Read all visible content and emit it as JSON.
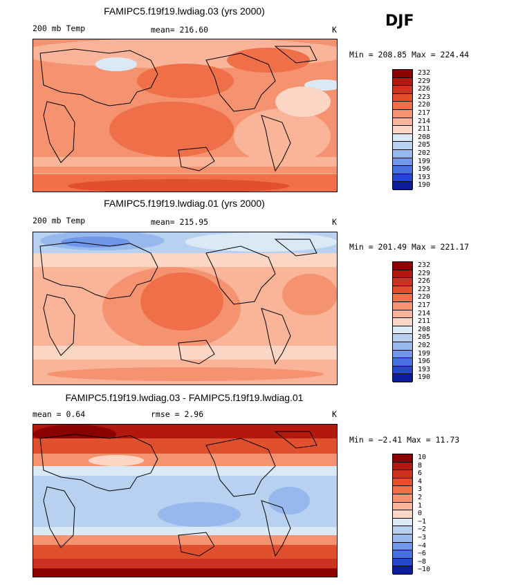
{
  "season": "DJF",
  "chart_data": [
    {
      "type": "heatmap",
      "title": "FAMIPC5.f19f19.lwdiag.03 (yrs 2000)",
      "variable": "200 mb Temp",
      "stat_text": "mean= 216.60",
      "units": "K",
      "min_max_text": "Min = 208.85 Max = 224.44",
      "min": 208.85,
      "max": 224.44,
      "levels": [
        "232",
        "229",
        "226",
        "223",
        "220",
        "217",
        "214",
        "211",
        "208",
        "205",
        "202",
        "199",
        "196",
        "193",
        "190"
      ],
      "colors": [
        "#8b0000",
        "#b2180e",
        "#cd3220",
        "#e0502f",
        "#ef7048",
        "#f59370",
        "#fab49a",
        "#fcd6c4",
        "#dbe8f5",
        "#b8d1f0",
        "#96b8ec",
        "#6f96e8",
        "#4770e0",
        "#2447cc",
        "#0a1c99"
      ]
    },
    {
      "type": "heatmap",
      "title": "FAMIPC5.f19f19.lwdiag.01 (yrs 2000)",
      "variable": "200 mb Temp",
      "stat_text": "mean= 215.95",
      "units": "K",
      "min_max_text": "Min = 201.49 Max = 221.17",
      "min": 201.49,
      "max": 221.17,
      "levels": [
        "232",
        "229",
        "226",
        "223",
        "220",
        "217",
        "214",
        "211",
        "208",
        "205",
        "202",
        "199",
        "196",
        "193",
        "190"
      ],
      "colors": [
        "#8b0000",
        "#b2180e",
        "#cd3220",
        "#e0502f",
        "#ef7048",
        "#f59370",
        "#fab49a",
        "#fcd6c4",
        "#dbe8f5",
        "#b8d1f0",
        "#96b8ec",
        "#6f96e8",
        "#4770e0",
        "#2447cc",
        "#0a1c99"
      ]
    },
    {
      "type": "heatmap",
      "title": "FAMIPC5.f19f19.lwdiag.03 - FAMIPC5.f19f19.lwdiag.01",
      "stat_text": "mean =    0.64",
      "rmse_text": "rmse =    2.96",
      "units": "K",
      "min_max_text": "Min =  −2.41 Max =  11.73",
      "min": -2.41,
      "max": 11.73,
      "levels": [
        "10",
        "8",
        "6",
        "4",
        "3",
        "2",
        "1",
        "0",
        "−1",
        "−2",
        "−3",
        "−4",
        "−6",
        "−8",
        "−10"
      ],
      "colors": [
        "#8b0000",
        "#b2180e",
        "#cd3220",
        "#e0502f",
        "#ef7048",
        "#f59370",
        "#fab49a",
        "#fcd6c4",
        "#dbe8f5",
        "#b8d1f0",
        "#96b8ec",
        "#6f96e8",
        "#4770e0",
        "#2447cc",
        "#0a1c99"
      ]
    }
  ]
}
